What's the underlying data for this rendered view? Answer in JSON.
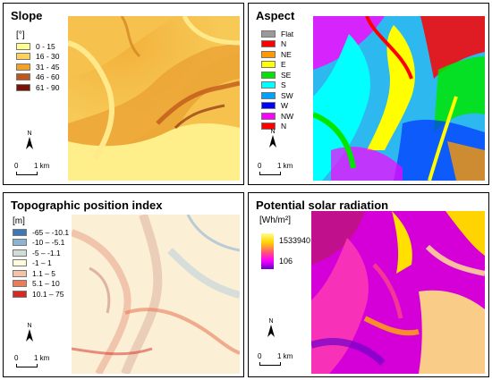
{
  "panels": {
    "slope": {
      "title": "Slope",
      "unit": "[°]",
      "legend": [
        {
          "label": "0 - 15",
          "color": "#ffff8c"
        },
        {
          "label": "16 - 30",
          "color": "#fcd15d"
        },
        {
          "label": "31 - 45",
          "color": "#f2a126"
        },
        {
          "label": "46 - 60",
          "color": "#c0561b"
        },
        {
          "label": "61 - 90",
          "color": "#7a1207"
        }
      ],
      "north_label": "N",
      "scale_zero": "0",
      "scale_label": "1 km"
    },
    "aspect": {
      "title": "Aspect",
      "legend": [
        {
          "label": "Flat",
          "color": "#9a9a9a"
        },
        {
          "label": "N",
          "color": "#ff0000"
        },
        {
          "label": "NE",
          "color": "#ff9900"
        },
        {
          "label": "E",
          "color": "#ffff00"
        },
        {
          "label": "SE",
          "color": "#00e600"
        },
        {
          "label": "S",
          "color": "#00ffff"
        },
        {
          "label": "SW",
          "color": "#00a0ff"
        },
        {
          "label": "W",
          "color": "#0000ff"
        },
        {
          "label": "NW",
          "color": "#ff00ff"
        },
        {
          "label": "N",
          "color": "#ff0000"
        }
      ],
      "north_label": "N",
      "scale_zero": "0",
      "scale_label": "1 km"
    },
    "tpi": {
      "title": "Topographic position index",
      "unit": "[m]",
      "legend": [
        {
          "label": "-65 – -10.1",
          "color": "#3a78b8"
        },
        {
          "label": "-10 – -5.1",
          "color": "#8eb4d4"
        },
        {
          "label": "-5 – -1.1",
          "color": "#cfdcd8"
        },
        {
          "label": "-1 – 1",
          "color": "#fffcd8"
        },
        {
          "label": "1.1 – 5",
          "color": "#f5c2a6"
        },
        {
          "label": "5.1 – 10",
          "color": "#ea7c5a"
        },
        {
          "label": "10.1 – 75",
          "color": "#d42a24"
        }
      ],
      "north_label": "N",
      "scale_zero": "0",
      "scale_label": "1 km"
    },
    "solar": {
      "title": "Potential solar radiation",
      "unit": "[Wh/m²]",
      "gradient_max": "1533940",
      "gradient_min": "106",
      "north_label": "N",
      "scale_zero": "0",
      "scale_label": "1 km"
    }
  }
}
